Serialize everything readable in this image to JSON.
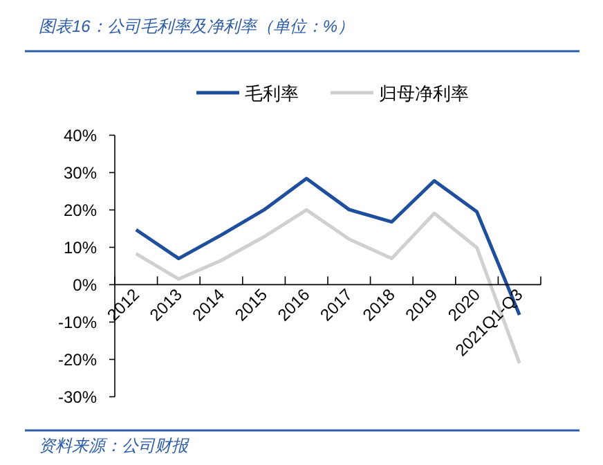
{
  "chart_data": {
    "type": "line",
    "title": "图表16：公司毛利率及净利率（单位：%）",
    "categories": [
      "2012",
      "2013",
      "2014",
      "2015",
      "2016",
      "2017",
      "2018",
      "2019",
      "2020",
      "2021Q1-Q3"
    ],
    "series": [
      {
        "name": "毛利率",
        "color": "#1f4e9c",
        "values": [
          14.7,
          7.0,
          13.3,
          20.0,
          28.4,
          20.1,
          16.8,
          27.8,
          19.5,
          -8.1
        ]
      },
      {
        "name": "归母净利率",
        "color": "#d0d0d0",
        "values": [
          8.3,
          1.5,
          6.5,
          12.8,
          20.0,
          12.2,
          7.0,
          19.1,
          9.9,
          -21.0
        ]
      }
    ],
    "ylim": [
      -30,
      40
    ],
    "yticks": [
      {
        "value": -30,
        "label": "-30%"
      },
      {
        "value": -20,
        "label": "-20%"
      },
      {
        "value": -10,
        "label": "-10%"
      },
      {
        "value": 0,
        "label": "0%"
      },
      {
        "value": 10,
        "label": "10%"
      },
      {
        "value": 20,
        "label": "20%"
      },
      {
        "value": 30,
        "label": "30%"
      },
      {
        "value": 40,
        "label": "40%"
      }
    ],
    "legend": "top",
    "grid": false,
    "annotations": [
      "资料来源：公司财报"
    ]
  }
}
